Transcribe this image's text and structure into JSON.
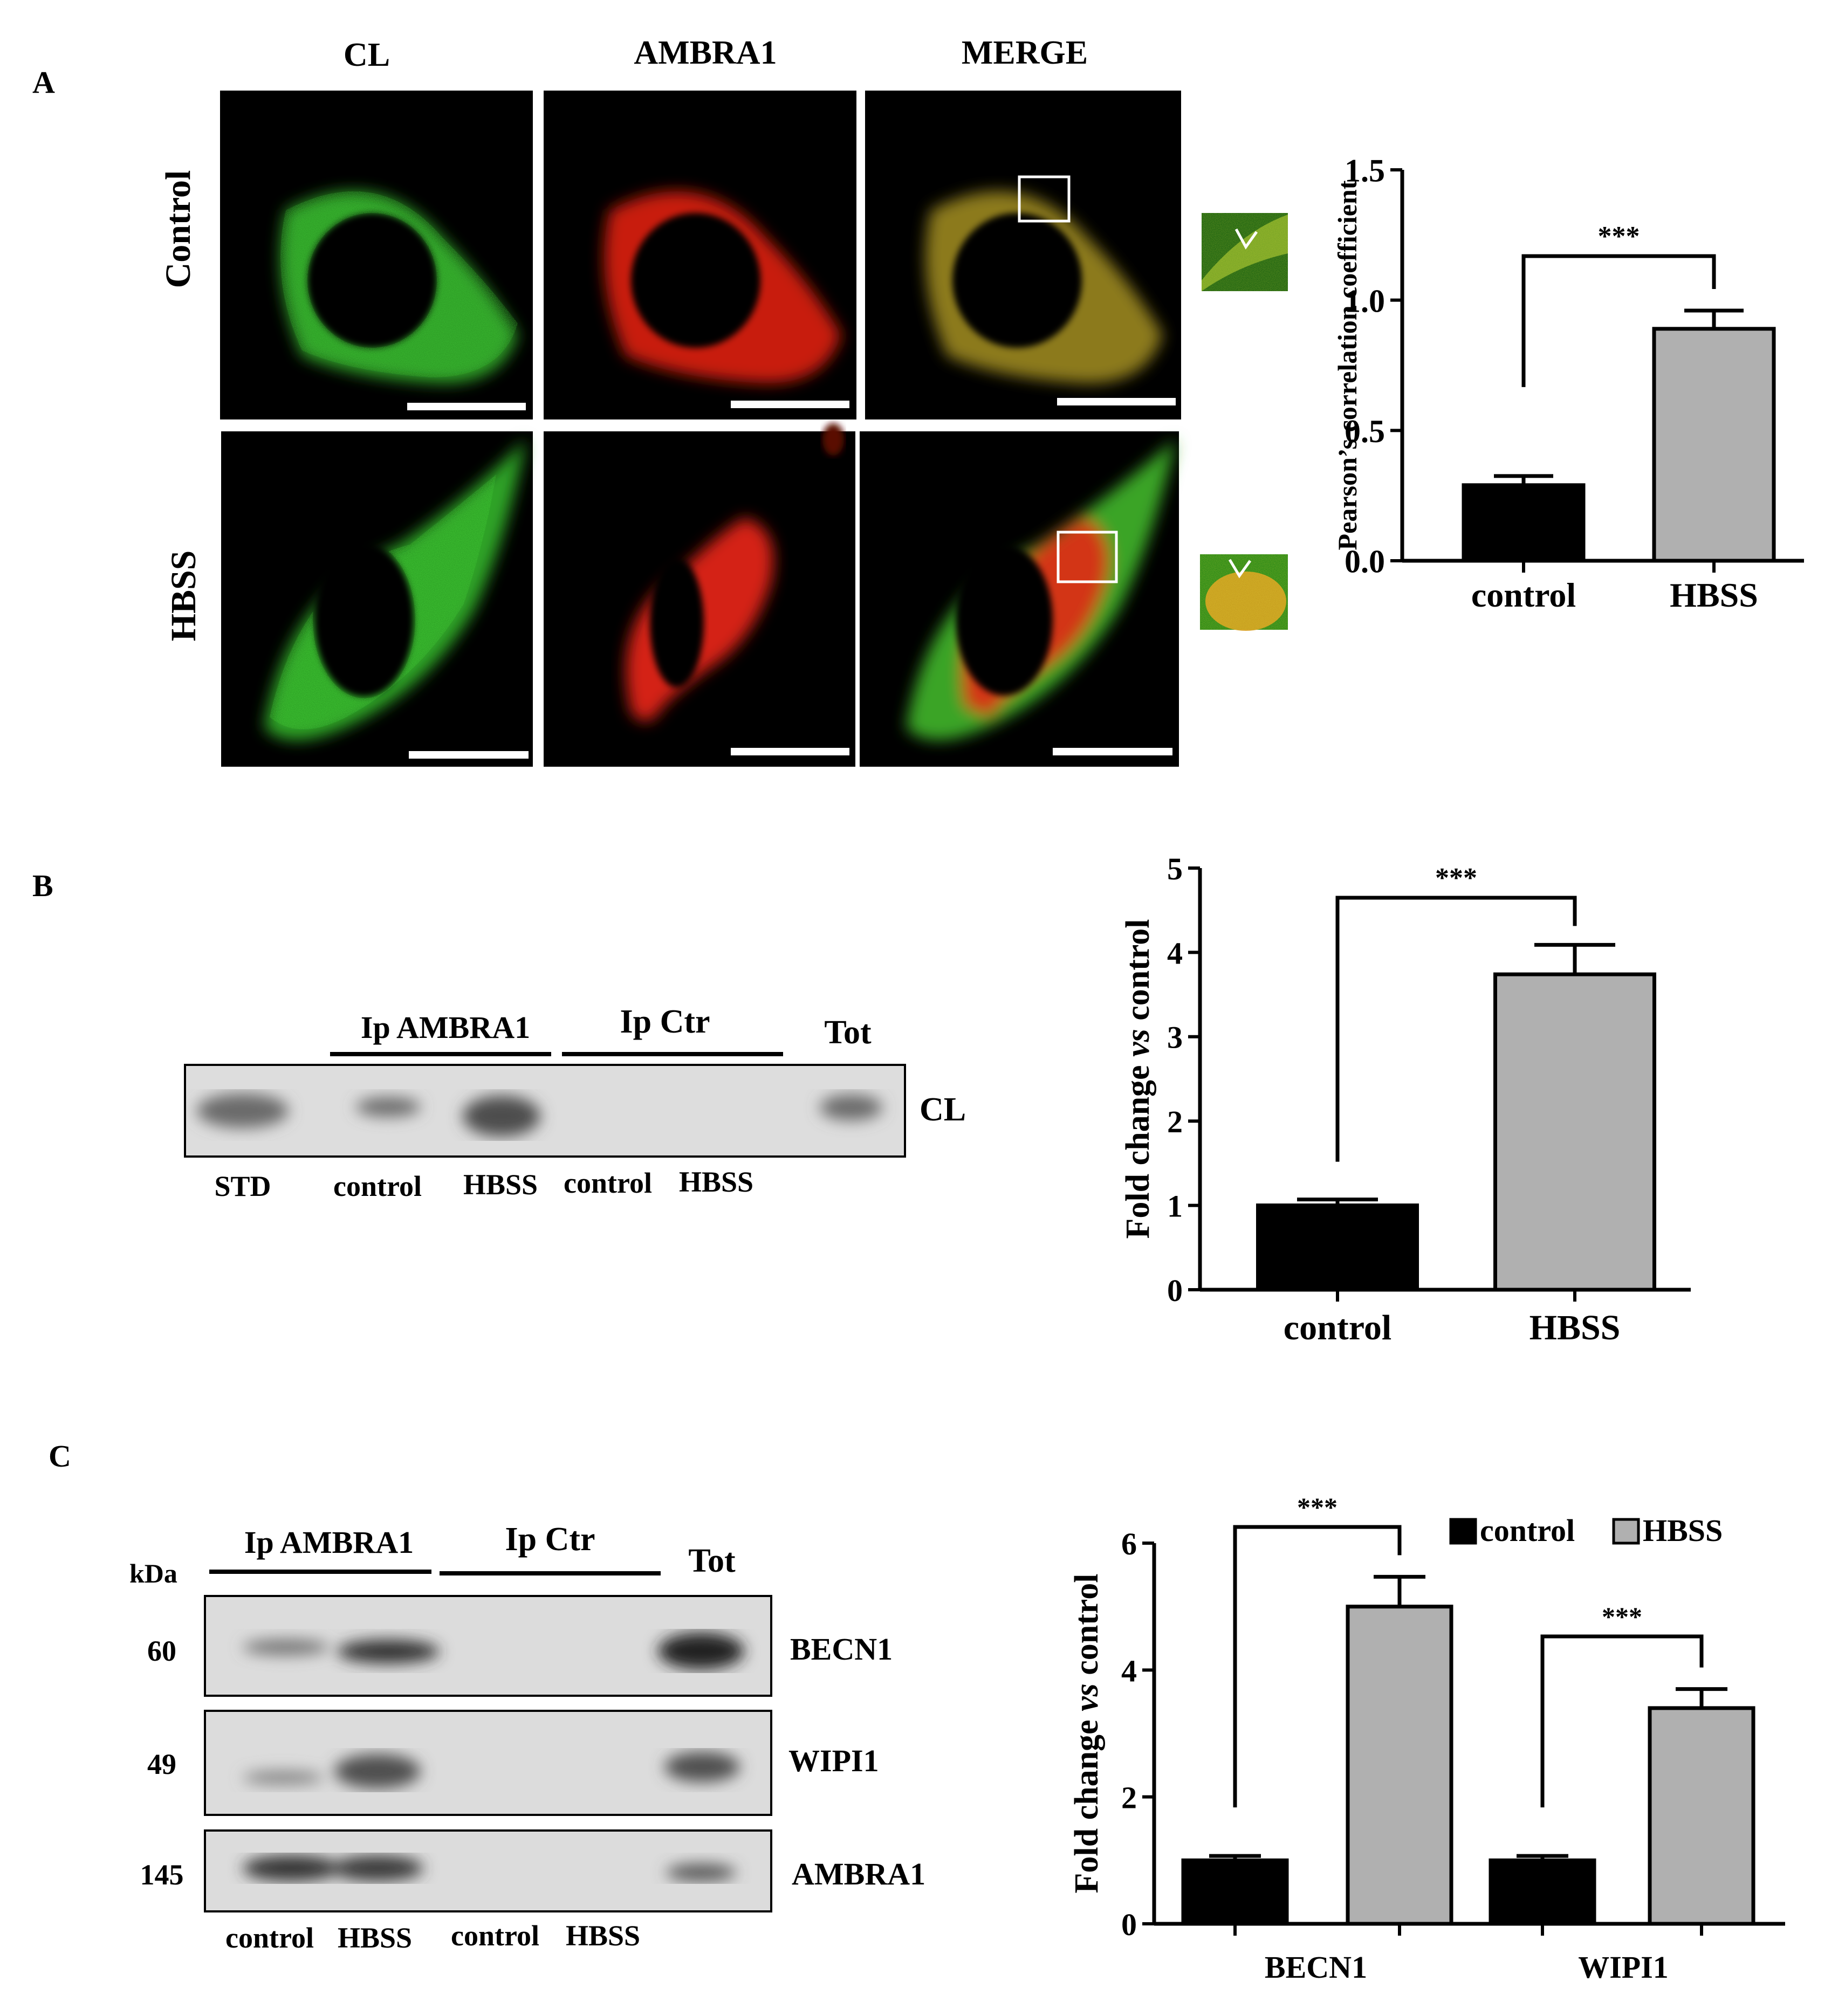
{
  "panel_labels": {
    "a": "A",
    "b": "B",
    "c": "C"
  },
  "colors": {
    "control": "#000000",
    "hbss": "#b0b0b0",
    "blot_bg": "#dcdcdc",
    "micro_bg": "#000000",
    "cl_green": "#2fbf2a",
    "ambra_red": "#e01c10"
  },
  "panel_a": {
    "column_headers": [
      "CL",
      "AMBRA1",
      "MERGE"
    ],
    "row_labels": [
      "Control",
      "HBSS"
    ]
  },
  "panel_b": {
    "groups": [
      {
        "label": "Ip AMBRA1"
      },
      {
        "label": "Ip Ctr"
      },
      {
        "label": "Tot"
      }
    ],
    "band_label": "CL",
    "lane_labels": [
      "STD",
      "control",
      "HBSS",
      "control",
      "HBSS"
    ]
  },
  "panel_c": {
    "kda_label": "kDa",
    "groups": [
      {
        "label": "Ip AMBRA1"
      },
      {
        "label": "Ip Ctr"
      },
      {
        "label": "Tot"
      }
    ],
    "rows": [
      {
        "kda": "60",
        "label": "BECN1"
      },
      {
        "kda": "49",
        "label": "WIPI1"
      },
      {
        "kda": "145",
        "label": "AMBRA1"
      }
    ],
    "lane_labels": [
      "control",
      "HBSS",
      "control",
      "HBSS"
    ]
  },
  "chart_data": [
    {
      "type": "bar",
      "categories": [
        "control",
        "HBSS"
      ],
      "values": [
        0.29,
        0.89
      ],
      "errors": [
        0.035,
        0.07
      ],
      "ylabel": "Pearson’s correlation coefficient",
      "ylim": [
        0,
        1.5
      ],
      "yticks": [
        "0.0",
        "0.5",
        "1.0",
        "1.5"
      ],
      "significance": "***",
      "grid": false
    },
    {
      "type": "bar",
      "categories": [
        "control",
        "HBSS"
      ],
      "values": [
        1.0,
        3.74
      ],
      "errors": [
        0.07,
        0.35
      ],
      "ylabel_parts": [
        "Fold change ",
        "vs",
        " control"
      ],
      "ylim": [
        0,
        5
      ],
      "yticks": [
        "0",
        "1",
        "2",
        "3",
        "4",
        "5"
      ],
      "significance": "***",
      "grid": false
    },
    {
      "type": "bar",
      "categories": [
        "BECN1",
        "WIPI1"
      ],
      "series": [
        {
          "name": "control",
          "values": [
            1.0,
            1.0
          ],
          "errors": [
            0.07,
            0.07
          ]
        },
        {
          "name": "HBSS",
          "values": [
            5.0,
            3.4
          ],
          "errors": [
            0.47,
            0.3
          ]
        }
      ],
      "ylabel_parts": [
        "Fold change ",
        "vs",
        " control"
      ],
      "ylim": [
        0,
        6
      ],
      "yticks": [
        "0",
        "2",
        "4",
        "6"
      ],
      "significance": [
        "***",
        "***"
      ],
      "legend": "top-right",
      "grid": false
    }
  ]
}
